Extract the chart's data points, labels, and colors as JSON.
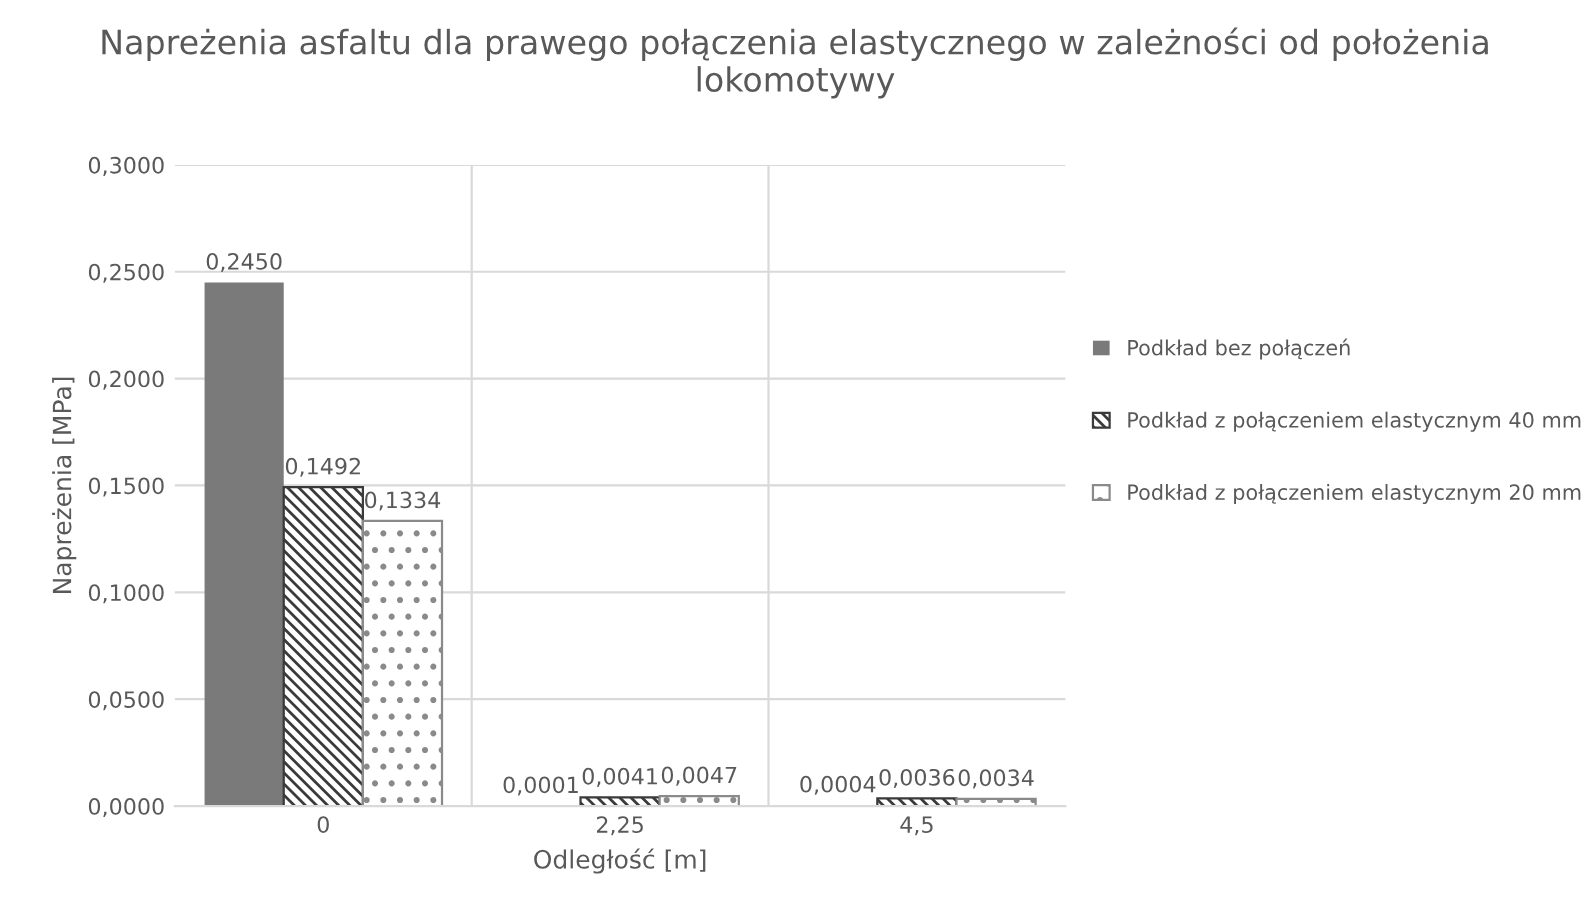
{
  "chart_data": {
    "type": "bar",
    "title": "Napreżenia asfaltu dla prawego połączenia elastycznego w zależności od położenia lokomotywy",
    "xlabel": "Odległość [m]",
    "ylabel": "Napreżenia [MPa]",
    "categories": [
      "0",
      "2,25",
      "4,5"
    ],
    "series": [
      {
        "name": "Podkład bez połączeń",
        "color": "#7a7a7a",
        "values": [
          0.245,
          0.0001,
          0.0004
        ],
        "value_labels": [
          "0,2450",
          "0,0001",
          "0,0004"
        ]
      },
      {
        "name": "Podkład z połączeniem elastycznym 40 mm",
        "color": "#3a3a3a",
        "values": [
          0.1492,
          0.0041,
          0.0036
        ],
        "value_labels": [
          "0,1492",
          "0,0041",
          "0,0036"
        ]
      },
      {
        "name": "Podkład z połączeniem elastycznym 20 mm",
        "color": "#8a8a8a",
        "values": [
          0.1334,
          0.0047,
          0.0034
        ],
        "value_labels": [
          "0,1334",
          "0,0047",
          "0,0034"
        ]
      }
    ],
    "ylim": [
      0,
      0.3
    ],
    "yticks": [
      {
        "value": 0,
        "label": "0,0000"
      },
      {
        "value": 0.05,
        "label": "0,0500"
      },
      {
        "value": 0.1,
        "label": "0,1000"
      },
      {
        "value": 0.15,
        "label": "0,1500"
      },
      {
        "value": 0.2,
        "label": "0,2000"
      },
      {
        "value": 0.25,
        "label": "0,2500"
      },
      {
        "value": 0.3,
        "label": "0,3000"
      }
    ],
    "grid": true,
    "legend": "right"
  }
}
